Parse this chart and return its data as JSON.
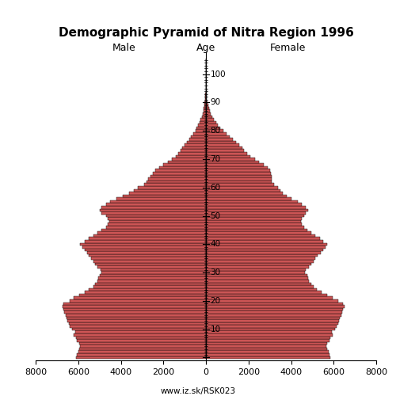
{
  "title": "Demographic Pyramid of Nitra Region 1996",
  "male_label": "Male",
  "female_label": "Female",
  "age_label": "Age",
  "url": "www.iz.sk/RSK023",
  "xlim": 8000,
  "bar_color": "#cc5555",
  "edge_color": "#000000",
  "ages": [
    0,
    1,
    2,
    3,
    4,
    5,
    6,
    7,
    8,
    9,
    10,
    11,
    12,
    13,
    14,
    15,
    16,
    17,
    18,
    19,
    20,
    21,
    22,
    23,
    24,
    25,
    26,
    27,
    28,
    29,
    30,
    31,
    32,
    33,
    34,
    35,
    36,
    37,
    38,
    39,
    40,
    41,
    42,
    43,
    44,
    45,
    46,
    47,
    48,
    49,
    50,
    51,
    52,
    53,
    54,
    55,
    56,
    57,
    58,
    59,
    60,
    61,
    62,
    63,
    64,
    65,
    66,
    67,
    68,
    69,
    70,
    71,
    72,
    73,
    74,
    75,
    76,
    77,
    78,
    79,
    80,
    81,
    82,
    83,
    84,
    85,
    86,
    87,
    88,
    89,
    90,
    91,
    92,
    93,
    94,
    95,
    96,
    97,
    98,
    99,
    100,
    101,
    102,
    103,
    104,
    105
  ],
  "male": [
    6100,
    6050,
    6000,
    5950,
    5900,
    5950,
    6050,
    6100,
    6200,
    6150,
    6300,
    6400,
    6450,
    6500,
    6550,
    6600,
    6650,
    6700,
    6750,
    6700,
    6400,
    6200,
    5950,
    5700,
    5500,
    5300,
    5200,
    5100,
    5050,
    5000,
    4900,
    4950,
    5100,
    5200,
    5300,
    5400,
    5500,
    5600,
    5700,
    5800,
    5900,
    5700,
    5500,
    5300,
    5100,
    4900,
    4700,
    4600,
    4550,
    4600,
    4700,
    4900,
    5000,
    4900,
    4700,
    4500,
    4200,
    3900,
    3600,
    3400,
    3200,
    2900,
    2800,
    2700,
    2600,
    2500,
    2400,
    2200,
    2000,
    1800,
    1600,
    1400,
    1300,
    1200,
    1100,
    1000,
    900,
    800,
    700,
    600,
    500,
    430,
    370,
    310,
    250,
    200,
    160,
    130,
    100,
    80,
    60,
    40,
    30,
    20,
    15,
    10,
    7,
    5,
    3,
    2,
    1,
    1,
    0,
    0,
    0,
    0
  ],
  "female": [
    5850,
    5800,
    5750,
    5700,
    5650,
    5700,
    5800,
    5850,
    5950,
    5900,
    6050,
    6150,
    6200,
    6250,
    6300,
    6350,
    6400,
    6450,
    6500,
    6450,
    6200,
    5950,
    5700,
    5450,
    5200,
    5050,
    4950,
    4850,
    4800,
    4750,
    4650,
    4700,
    4850,
    4950,
    5050,
    5150,
    5250,
    5400,
    5500,
    5600,
    5700,
    5500,
    5350,
    5150,
    4950,
    4750,
    4600,
    4500,
    4450,
    4500,
    4600,
    4700,
    4800,
    4700,
    4500,
    4300,
    4000,
    3800,
    3600,
    3500,
    3400,
    3200,
    3100,
    3100,
    3100,
    3050,
    3000,
    2900,
    2700,
    2500,
    2300,
    2100,
    1950,
    1800,
    1700,
    1550,
    1400,
    1250,
    1100,
    950,
    800,
    680,
    570,
    470,
    380,
    300,
    240,
    190,
    150,
    110,
    80,
    55,
    40,
    28,
    20,
    13,
    9,
    6,
    4,
    2,
    1,
    1,
    0,
    0,
    0,
    0
  ]
}
